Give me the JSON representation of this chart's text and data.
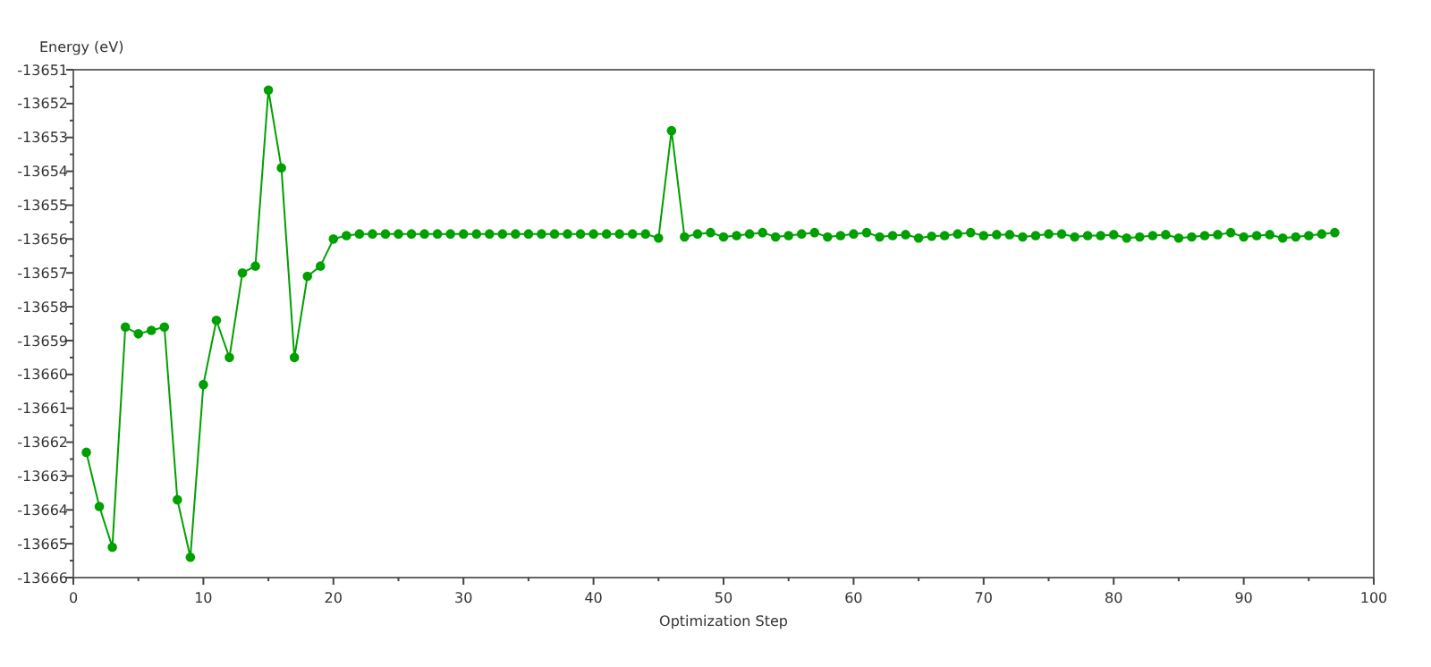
{
  "chart_data": {
    "type": "line",
    "ylabel": "Energy (eV)",
    "xlabel": "Optimization Step",
    "marker": "circle",
    "grid": false,
    "xlim": [
      0,
      100
    ],
    "ylim": [
      -13666,
      -13651
    ],
    "xticks": [
      0,
      10,
      20,
      30,
      40,
      50,
      60,
      70,
      80,
      90,
      100
    ],
    "yticks": [
      -13666,
      -13665,
      -13664,
      -13663,
      -13662,
      -13661,
      -13660,
      -13659,
      -13658,
      -13657,
      -13656,
      -13655,
      -13654,
      -13653,
      -13652,
      -13651
    ],
    "x": [
      1,
      2,
      3,
      4,
      5,
      6,
      7,
      8,
      9,
      10,
      11,
      12,
      13,
      14,
      15,
      16,
      17,
      18,
      19,
      20,
      21,
      22,
      23,
      24,
      25,
      26,
      27,
      28,
      29,
      30,
      31,
      32,
      33,
      34,
      35,
      36,
      37,
      38,
      39,
      40,
      41,
      42,
      43,
      44,
      45,
      46,
      47,
      48,
      49,
      50,
      51,
      52,
      53,
      54,
      55,
      56,
      57,
      58,
      59,
      60,
      61,
      62,
      63,
      64,
      65,
      66,
      67,
      68,
      69,
      70,
      71,
      72,
      73,
      74,
      75,
      76,
      77,
      78,
      79,
      80,
      81,
      82,
      83,
      84,
      85,
      86,
      87,
      88,
      89,
      90,
      91,
      92,
      93,
      94,
      95,
      96,
      97
    ],
    "series": [
      {
        "color": "#00a000",
        "values": [
          -13662.3,
          -13663.9,
          -13665.1,
          -13658.6,
          -13658.8,
          -13658.7,
          -13658.6,
          -13663.7,
          -13665.4,
          -13660.3,
          -13658.4,
          -13659.5,
          -13657.0,
          -13656.8,
          -13651.6,
          -13653.9,
          -13659.5,
          -13657.1,
          -13656.8,
          -13656.0,
          -13655.9,
          -13655.85,
          -13655.85,
          -13655.85,
          -13655.85,
          -13655.85,
          -13655.85,
          -13655.85,
          -13655.85,
          -13655.85,
          -13655.85,
          -13655.85,
          -13655.85,
          -13655.85,
          -13655.85,
          -13655.85,
          -13655.85,
          -13655.85,
          -13655.85,
          -13655.85,
          -13655.85,
          -13655.85,
          -13655.85,
          -13655.85,
          -13655.97,
          -13652.8,
          -13655.94,
          -13655.85,
          -13655.81,
          -13655.94,
          -13655.9,
          -13655.85,
          -13655.81,
          -13655.94,
          -13655.9,
          -13655.85,
          -13655.81,
          -13655.94,
          -13655.9,
          -13655.85,
          -13655.81,
          -13655.94,
          -13655.9,
          -13655.87,
          -13655.97,
          -13655.92,
          -13655.9,
          -13655.85,
          -13655.81,
          -13655.9,
          -13655.87,
          -13655.87,
          -13655.94,
          -13655.9,
          -13655.85,
          -13655.85,
          -13655.94,
          -13655.9,
          -13655.9,
          -13655.87,
          -13655.97,
          -13655.94,
          -13655.9,
          -13655.87,
          -13655.97,
          -13655.94,
          -13655.9,
          -13655.87,
          -13655.81,
          -13655.94,
          -13655.9,
          -13655.87,
          -13655.97,
          -13655.94,
          -13655.9,
          -13655.85,
          -13655.81
        ]
      }
    ]
  }
}
